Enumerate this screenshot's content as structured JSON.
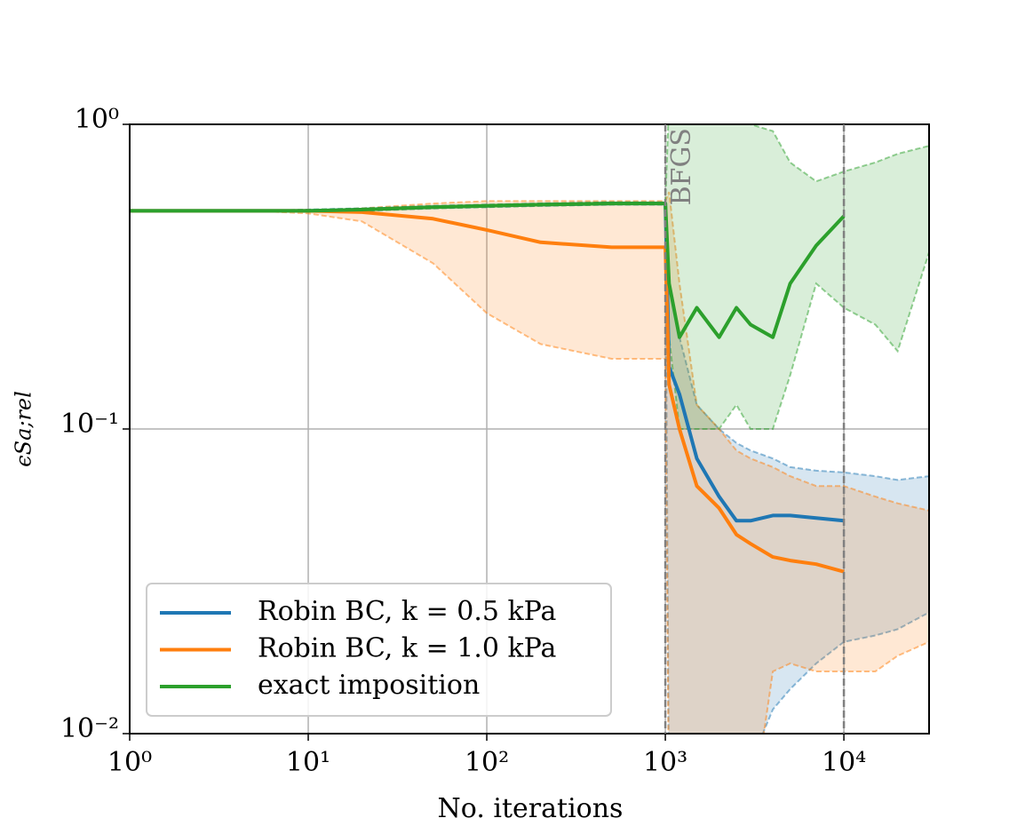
{
  "chart_data": {
    "type": "line",
    "xlabel": "No. iterations",
    "ylabel": "ϵSa;rel",
    "annotation": "BFGS",
    "vlines": [
      1000,
      10000
    ],
    "log_x": true,
    "log_y": true,
    "grid": true,
    "legend": "lower left",
    "xlim": [
      1,
      30000
    ],
    "ylim": [
      0.01,
      1
    ],
    "xticks": [
      {
        "value": 1,
        "label": "10⁰"
      },
      {
        "value": 10,
        "label": "10¹"
      },
      {
        "value": 100,
        "label": "10²"
      },
      {
        "value": 1000,
        "label": "10³"
      },
      {
        "value": 10000,
        "label": "10⁴"
      }
    ],
    "yticks": [
      {
        "value": 0.01,
        "label": "10⁻²"
      },
      {
        "value": 0.1,
        "label": "10⁻¹"
      },
      {
        "value": 1,
        "label": "10⁰"
      }
    ],
    "x": [
      1,
      2,
      5,
      10,
      20,
      50,
      100,
      200,
      500,
      1000,
      1050,
      1200,
      1500,
      2000,
      2500,
      3000,
      4000,
      5000,
      7000,
      10000,
      15000,
      20000,
      30000
    ],
    "series": [
      {
        "name": "Robin BC, k = 0.5 kPa",
        "color": "#1f77b4",
        "values": [
          0.52,
          0.52,
          0.52,
          0.52,
          0.525,
          0.535,
          0.54,
          0.545,
          0.55,
          0.55,
          0.16,
          0.13,
          0.08,
          0.06,
          0.05,
          0.05,
          0.052,
          0.052,
          0.051,
          0.05,
          null,
          null,
          null
        ],
        "lower": [
          0.52,
          0.52,
          0.52,
          0.52,
          0.52,
          0.53,
          0.535,
          0.54,
          0.545,
          0.545,
          0.005,
          0.005,
          0.005,
          0.005,
          0.005,
          0.008,
          0.012,
          0.014,
          0.017,
          0.02,
          0.021,
          0.022,
          0.025
        ],
        "upper": [
          0.52,
          0.52,
          0.52,
          0.525,
          0.53,
          0.54,
          0.545,
          0.55,
          0.555,
          0.555,
          0.3,
          0.2,
          0.12,
          0.1,
          0.09,
          0.085,
          0.08,
          0.075,
          0.073,
          0.072,
          0.07,
          0.068,
          0.07
        ]
      },
      {
        "name": "Robin BC, k = 1.0 kPa",
        "color": "#ff7f0e",
        "values": [
          0.52,
          0.52,
          0.52,
          0.52,
          0.515,
          0.49,
          0.45,
          0.41,
          0.395,
          0.395,
          0.14,
          0.1,
          0.065,
          0.055,
          0.045,
          0.042,
          0.038,
          0.037,
          0.036,
          0.034,
          null,
          null,
          null
        ],
        "lower": [
          0.52,
          0.52,
          0.52,
          0.51,
          0.48,
          0.35,
          0.24,
          0.19,
          0.17,
          0.17,
          0.005,
          0.005,
          0.005,
          0.005,
          0.005,
          0.005,
          0.016,
          0.017,
          0.016,
          0.016,
          0.016,
          0.018,
          0.02
        ],
        "upper": [
          0.52,
          0.52,
          0.52,
          0.52,
          0.53,
          0.55,
          0.56,
          0.56,
          0.56,
          0.56,
          0.6,
          0.3,
          0.12,
          0.1,
          0.085,
          0.08,
          0.075,
          0.07,
          0.065,
          0.065,
          0.06,
          0.057,
          0.054
        ]
      },
      {
        "name": "exact imposition",
        "color": "#2ca02c",
        "values": [
          0.52,
          0.52,
          0.52,
          0.52,
          0.525,
          0.535,
          0.54,
          0.545,
          0.55,
          0.55,
          0.3,
          0.2,
          0.25,
          0.2,
          0.25,
          0.22,
          0.2,
          0.3,
          0.4,
          0.5,
          null,
          null,
          null
        ],
        "lower": [
          0.52,
          0.52,
          0.52,
          0.52,
          0.52,
          0.53,
          0.535,
          0.54,
          0.545,
          0.545,
          0.2,
          0.1,
          0.1,
          0.1,
          0.12,
          0.1,
          0.1,
          0.15,
          0.3,
          0.25,
          0.22,
          0.18,
          0.38
        ],
        "upper": [
          0.52,
          0.52,
          0.52,
          0.525,
          0.53,
          0.54,
          0.545,
          0.55,
          0.555,
          0.555,
          1.2,
          1.2,
          1.2,
          1.2,
          1.0,
          1.0,
          0.95,
          0.75,
          0.65,
          0.7,
          0.75,
          0.8,
          0.85
        ]
      }
    ]
  }
}
